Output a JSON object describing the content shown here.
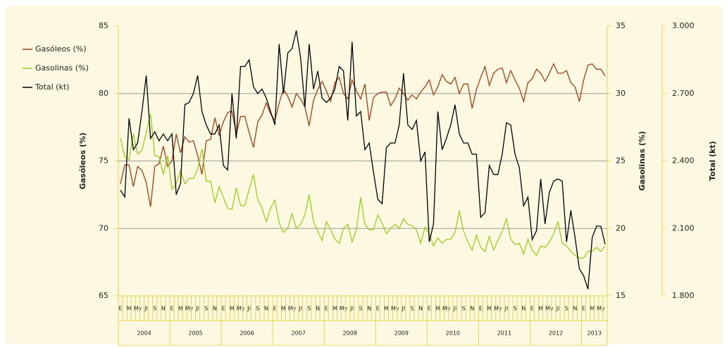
{
  "chart_data": {
    "type": "line",
    "categories": [
      "E",
      null,
      "M",
      null,
      "My",
      null,
      "Jl",
      null,
      "S",
      null,
      "N",
      null,
      "E",
      null,
      "M",
      null,
      "My",
      null,
      "Jl",
      null,
      "S",
      null,
      "N",
      null,
      "E",
      null,
      "M",
      null,
      "My",
      null,
      "Jl",
      null,
      "S",
      null,
      "N",
      null,
      "E",
      null,
      "M",
      null,
      "My",
      null,
      "Jl",
      null,
      "S",
      null,
      "N",
      null,
      "E",
      null,
      "M",
      null,
      "My",
      null,
      "Jl",
      null,
      "S",
      null,
      "N",
      null,
      "E",
      null,
      "M",
      null,
      "My",
      null,
      "Jl",
      null,
      "S",
      null,
      "N",
      null,
      "E",
      null,
      "M",
      null,
      "My",
      null,
      "Jl",
      null,
      "S",
      null,
      "N",
      null,
      "E",
      null,
      "M",
      null,
      "My",
      null,
      "Jl",
      null,
      "S",
      null,
      "N",
      null,
      "E",
      null,
      "M",
      null,
      "My",
      null,
      "Jl",
      null,
      "S",
      null,
      "N",
      null,
      "E",
      null,
      "M",
      null,
      "My",
      null
    ],
    "years": [
      "2004",
      "2005",
      "2006",
      "2007",
      "2008",
      "2009",
      "2010",
      "2011",
      "2012",
      "2013"
    ],
    "ylabel": "Gasóleos (%)",
    "y2label": "Gasolinas (%)",
    "y3label": "Total (kt)",
    "ylim": [
      65,
      85
    ],
    "yticks": [
      65,
      70,
      75,
      80,
      85
    ],
    "y2lim": [
      15,
      35
    ],
    "y2ticks": [
      15,
      20,
      25,
      30,
      35
    ],
    "y3lim": [
      1800,
      3000
    ],
    "y3ticks": [
      {
        "value": 1800,
        "label": "1.800"
      },
      {
        "value": 2100,
        "label": "2.100"
      },
      {
        "value": 2400,
        "label": "2.400"
      },
      {
        "value": 2700,
        "label": "2.700"
      },
      {
        "value": 3000,
        "label": "3.000"
      }
    ],
    "grid": true,
    "legend": "top-left",
    "series": [
      {
        "name": "Gasóleos (%)",
        "color": "#a33f17",
        "axis": "y",
        "values": [
          73.3,
          74.7,
          74.7,
          73.1,
          74.6,
          74.3,
          73.4,
          71.6,
          74.6,
          74.8,
          76.1,
          74.6,
          75.0,
          77.0,
          75.6,
          76.8,
          76.4,
          76.5,
          75.4,
          74.0,
          76.5,
          76.6,
          78.2,
          76.9,
          77.9,
          78.6,
          78.7,
          77.0,
          78.3,
          78.3,
          77.1,
          76.0,
          77.9,
          78.4,
          79.3,
          78.5,
          78.0,
          79.3,
          80.3,
          79.8,
          79.0,
          80.0,
          79.6,
          79.0,
          77.6,
          79.5,
          80.3,
          80.9,
          80.2,
          79.4,
          80.8,
          81.2,
          80.0,
          79.6,
          81.0,
          80.2,
          79.6,
          80.7,
          78.0,
          79.7,
          80.0,
          80.1,
          80.1,
          79.1,
          79.6,
          80.4,
          80.0,
          79.5,
          79.9,
          79.6,
          80.1,
          80.5,
          81.0,
          79.9,
          80.5,
          81.4,
          80.9,
          80.7,
          81.2,
          80.0,
          80.7,
          80.7,
          78.9,
          80.3,
          81.2,
          82.0,
          80.6,
          81.5,
          81.8,
          81.9,
          80.8,
          81.7,
          81.0,
          80.4,
          79.4,
          80.8,
          81.1,
          81.8,
          81.5,
          80.9,
          81.5,
          82.2,
          81.5,
          81.5,
          81.7,
          80.8,
          80.5,
          79.4,
          81.0,
          82.1,
          82.2,
          81.8,
          81.8,
          81.3
        ]
      },
      {
        "name": "Gasolinas (%)",
        "color": "#9acd1e",
        "axis": "y2",
        "values": [
          26.7,
          25.3,
          25.1,
          27.0,
          25.5,
          25.8,
          27.1,
          28.5,
          25.4,
          25.3,
          24.0,
          25.4,
          22.9,
          23.3,
          24.3,
          23.3,
          23.7,
          23.7,
          24.4,
          25.9,
          23.5,
          23.5,
          21.9,
          23.1,
          22.3,
          21.5,
          21.4,
          23.0,
          21.7,
          21.7,
          22.9,
          24.0,
          22.1,
          21.5,
          20.5,
          21.5,
          22.1,
          20.4,
          19.7,
          20.0,
          21.1,
          20.0,
          20.3,
          21.0,
          22.5,
          20.5,
          19.8,
          19.1,
          20.5,
          19.9,
          19.2,
          18.9,
          20.0,
          20.3,
          19.0,
          19.9,
          22.3,
          20.3,
          19.9,
          19.9,
          21.0,
          20.4,
          19.6,
          20.0,
          20.3,
          20.0,
          20.7,
          20.3,
          20.2,
          19.9,
          18.9,
          20.1,
          19.6,
          18.7,
          19.3,
          18.9,
          19.2,
          19.2,
          19.7,
          21.3,
          19.8,
          19.0,
          18.4,
          19.5,
          18.6,
          18.3,
          19.4,
          18.4,
          19.1,
          19.8,
          20.7,
          19.2,
          18.8,
          18.9,
          18.1,
          19.2,
          18.4,
          18.0,
          18.7,
          18.6,
          19.0,
          19.6,
          20.5,
          18.9,
          18.7,
          18.3,
          18.0,
          17.8,
          17.8,
          18.3,
          18.3,
          18.6,
          18.3,
          18.7
        ]
      },
      {
        "name": "Total (kt)",
        "color": "#000000",
        "axis": "y3",
        "values": [
          2270,
          2240,
          2590,
          2450,
          2480,
          2620,
          2780,
          2500,
          2530,
          2490,
          2520,
          2490,
          2520,
          2250,
          2300,
          2650,
          2660,
          2700,
          2780,
          2620,
          2560,
          2520,
          2520,
          2560,
          2380,
          2360,
          2700,
          2500,
          2820,
          2820,
          2850,
          2730,
          2700,
          2720,
          2680,
          2620,
          2560,
          2920,
          2700,
          2880,
          2900,
          2980,
          2860,
          2640,
          2920,
          2720,
          2800,
          2680,
          2660,
          2680,
          2720,
          2820,
          2800,
          2580,
          2930,
          2600,
          2620,
          2450,
          2480,
          2350,
          2230,
          2210,
          2460,
          2480,
          2480,
          2560,
          2790,
          2560,
          2540,
          2580,
          2400,
          2440,
          2040,
          2120,
          2620,
          2450,
          2500,
          2560,
          2650,
          2520,
          2480,
          2480,
          2430,
          2430,
          2150,
          2170,
          2380,
          2340,
          2340,
          2430,
          2570,
          2560,
          2430,
          2370,
          2200,
          2240,
          2050,
          2090,
          2320,
          2120,
          2260,
          2310,
          2320,
          2310,
          2040,
          2180,
          2060,
          1920,
          1890,
          1830,
          2060,
          2110,
          2110,
          2030
        ]
      }
    ]
  }
}
